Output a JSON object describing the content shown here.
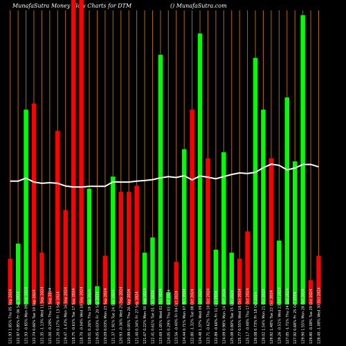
{
  "header": {
    "left": "MunafaSutra  Money Flow  Charts for DTM",
    "right": "() MunafaSutra.com"
  },
  "chart_data": {
    "type": "bar",
    "title": "MunafaSutra  Money Flow  Charts for DTM",
    "ylim": [
      0,
      100
    ],
    "grid": "vertical",
    "price_line_range": [
      0,
      100
    ],
    "categories": [
      "121.93 1.85% Thu 05 Sep 2024",
      "122.97 0.85% Fri 06 Sep 2024",
      "121.93 -0.85% Mon 09 Sep 2024",
      "122.74 0.66% Tue 10 Sep 2024",
      "121.35 -1.13% Wed 11 Sep 2024",
      "121.00 -0.29% Thu 12 Sep 2024",
      "121.20 0.17% Fri 13 Sep 2024",
      "119.47 -1.43% Mon 16 Sep 2024",
      "118.75 -0.61% Tue 17 Sep 2024",
      "118.70 -0.04% Wed 18 Sep 2024",
      "119.01 0.26% Thu 19 Sep 2024",
      "119.05 0.03% Fri 20 Sep 2024",
      "119.09 0.03% Mon 23 Sep 2024",
      "121.37 1.91% Tue 24 Sep 2024",
      "120.93 -0.36% Wed 25 Sep 2024",
      "120.99 0.05% Thu 26 Sep 2024",
      "121.40 0.34% Fri 27 Sep 2024",
      "121.67 0.22% Mon 30 Sep 2024",
      "122.41 0.61% Tue 01 Oct 2024",
      "123.69 1.05% Wed 02 Oct 2024",
      "124.05 0.29% Thu 03 Oct 2024",
      "123.56 -0.40% Fri 04 Oct 2024",
      "124.44 0.71% Mon 07 Oct 2024",
      "122.80 -1.32% Tue 08 Oct 2024",
      "124.48 1.37% Wed 09 Oct 2024",
      "123.71 -0.62% Thu 10 Oct 2024",
      "122.89 -0.66% Fri 11 Oct 2024",
      "124.09 0.98% Mon 14 Oct 2024",
      "125.08 0.80% Tue 15 Oct 2024",
      "125.77 0.55% Wed 16 Oct 2024",
      "125.17 -0.48% Thu 17 Oct 2024",
      "126.08 0.73% Fri 18 Oct 2024",
      "128.02 1.54% Mon 21 Oct 2024",
      "129.92 1.48% Tue 22 Oct 2024",
      "129.26 -0.51% Wed 23 Oct 2024",
      "127.05 -1.71% Thu 24 Oct 2024",
      "127.92 0.68% Fri 25 Oct 2024",
      "129.90 1.55% Mon 28 Oct 2024",
      "129.80 -0.08% Tue 29 Oct 2024",
      "128.40 -1.08% Wed 30 Oct 2024"
    ],
    "series": [
      {
        "colors": [
          "red",
          "green",
          "green",
          "red",
          "red",
          "red",
          "red",
          "red",
          "red",
          "red",
          "green",
          "green",
          "red",
          "green",
          "red",
          "red",
          "red",
          "green",
          "green",
          "green",
          "green",
          "red",
          "green",
          "red",
          "green",
          "red",
          "green",
          "green",
          "green",
          "red",
          "red",
          "green",
          "green",
          "red",
          "green",
          "green",
          "green",
          "green",
          "red",
          "red"
        ],
        "values": [
          15,
          20,
          64,
          66,
          17,
          4,
          57,
          31,
          100,
          102,
          38,
          6,
          16,
          42,
          37,
          37,
          39,
          17,
          22,
          82,
          4,
          14,
          51,
          64,
          89,
          48,
          18,
          50,
          17,
          15,
          24,
          81,
          64,
          48,
          21,
          68,
          47,
          95,
          8,
          16
        ]
      },
      {
        "values": [
          40.5,
          40.5,
          41.5,
          40.2,
          39.8,
          40.0,
          39.8,
          38.9,
          38.6,
          38.6,
          38.8,
          38.8,
          38.8,
          40.3,
          40.2,
          40.2,
          40.5,
          40.7,
          41.0,
          41.6,
          42.0,
          41.7,
          42.3,
          40.9,
          42.2,
          41.8,
          41.3,
          42.0,
          42.7,
          43.2,
          43.0,
          43.4,
          44.9,
          46.1,
          45.7,
          44.2,
          44.8,
          46.0,
          46.0,
          45.2
        ]
      }
    ]
  }
}
